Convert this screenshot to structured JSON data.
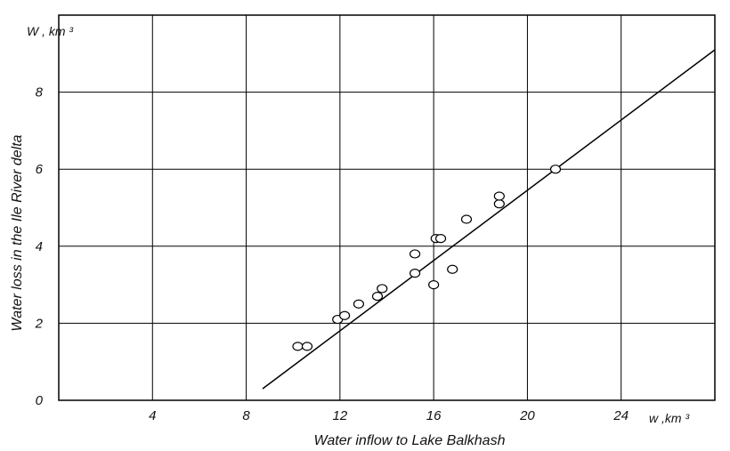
{
  "chart_data": {
    "type": "scatter",
    "title": "",
    "xlabel": "Water inflow to Lake Balkhash",
    "ylabel": "Water loss in the Ile River delta",
    "x_unit": "w ,km ³",
    "y_unit": "W , km ³",
    "xlim": [
      0,
      28
    ],
    "ylim": [
      0,
      10
    ],
    "x_ticks": [
      "4",
      "8",
      "12",
      "16",
      "20",
      "24"
    ],
    "y_ticks": [
      "0",
      "2",
      "4",
      "6",
      "8"
    ],
    "grid": true,
    "points": [
      {
        "x": 10.2,
        "y": 1.4
      },
      {
        "x": 10.6,
        "y": 1.4
      },
      {
        "x": 11.9,
        "y": 2.1
      },
      {
        "x": 12.2,
        "y": 2.2
      },
      {
        "x": 12.8,
        "y": 2.5
      },
      {
        "x": 13.6,
        "y": 2.7
      },
      {
        "x": 13.8,
        "y": 2.9
      },
      {
        "x": 15.2,
        "y": 3.3
      },
      {
        "x": 15.2,
        "y": 3.8
      },
      {
        "x": 16.0,
        "y": 3.0
      },
      {
        "x": 16.1,
        "y": 4.2
      },
      {
        "x": 16.3,
        "y": 4.2
      },
      {
        "x": 16.8,
        "y": 3.4
      },
      {
        "x": 17.4,
        "y": 4.7
      },
      {
        "x": 18.8,
        "y": 5.1
      },
      {
        "x": 18.8,
        "y": 5.3
      },
      {
        "x": 21.2,
        "y": 6.0
      }
    ],
    "trend_line": {
      "x": [
        8.7,
        28.0
      ],
      "y": [
        0.3,
        9.1
      ]
    }
  }
}
